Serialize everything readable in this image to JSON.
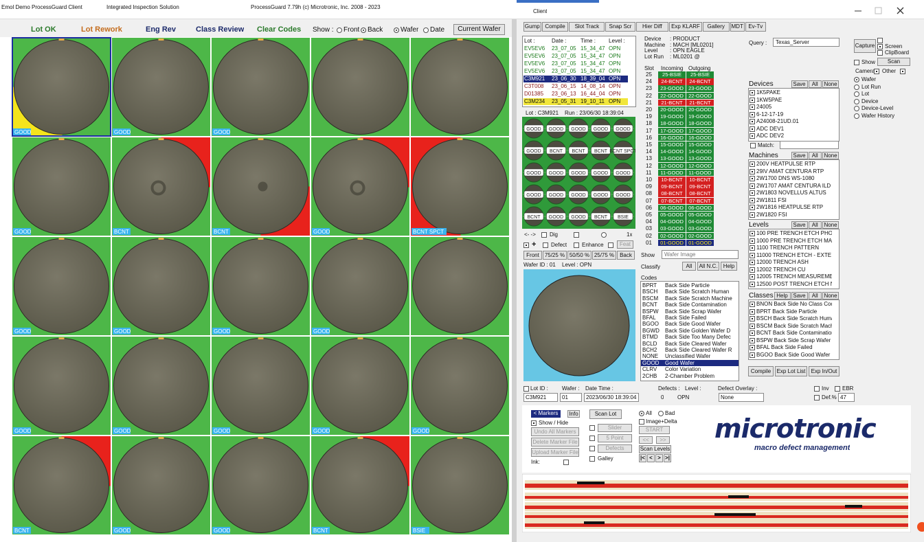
{
  "title_bar": {
    "app": "Emol Demo ProcessGuard Client",
    "subtitle": "Integrated Inspection Solution",
    "version": "ProcessGuard 7.79h (c) Microtronic, Inc. 2008 - 2023",
    "client": "Client"
  },
  "left": {
    "buttons": [
      "Lot OK",
      "Lot Rework",
      "Eng Rev",
      "Class Review",
      "Clear Codes"
    ],
    "show_label": "Show :",
    "side_options": [
      "Front",
      "Back"
    ],
    "sort_options": [
      "Wafer",
      "Date"
    ],
    "current_wafer": "Current Wafer",
    "wafers": [
      "GOOD",
      "GOOD",
      "GOOD",
      null,
      null,
      "GOOD",
      "BCNT",
      "BCNT",
      "GOOD",
      "BCNT SPCT",
      "GOOD",
      "GOOD",
      "GOOD",
      "GOOD",
      null,
      "GOOD",
      "GOOD",
      "GOOD",
      "GOOD",
      "GOOD",
      "BCNT",
      "GOOD",
      "GOOD",
      "BCNT",
      "BSIE"
    ]
  },
  "toolbar": [
    "Gump",
    "Compile",
    "Slot Track",
    "Snap Scr",
    "Hier Diff",
    "Exp KLARF",
    "Gallery",
    "MDT",
    "Ev-Tv"
  ],
  "lot_list": {
    "headers": [
      "Lot :",
      "Date :",
      "Time :",
      "Level :"
    ],
    "rows": [
      [
        "EV5EV6",
        "23_07_05",
        "15_34_47",
        "OPN"
      ],
      [
        "EV5EV6",
        "23_07_05",
        "15_34_47",
        "OPN"
      ],
      [
        "EV5EV6",
        "23_07_05",
        "15_34_47",
        "OPN"
      ],
      [
        "EV5EV6",
        "23_07_05",
        "15_34_47",
        "OPN"
      ],
      [
        "C3M921",
        "23_06_30",
        "18_39_04",
        "OPN"
      ],
      [
        "C3T008",
        "23_06_15",
        "14_08_14",
        "OPN"
      ],
      [
        "D01385",
        "23_06_13",
        "16_44_04",
        "OPN"
      ],
      [
        "C3M234",
        "23_05_31",
        "19_10_11",
        "OPN"
      ]
    ]
  },
  "lot_info": {
    "lot": "Lot : C3M921",
    "run": "Run : 23/06/30 18:39:04"
  },
  "mini_map": [
    "GOOD",
    "GOOD",
    "GOOD",
    "GOOD",
    "GOOD",
    "GOOD",
    "BCNT",
    "BCNT",
    "BCNT",
    "BCNT SPCT",
    "GOOD",
    "GOOD",
    "GOOD",
    "GOOD",
    "GOOD",
    "GOOD",
    "GOOD",
    "GOOD",
    "GOOD",
    "GOOD",
    "BCNT",
    "GOOD",
    "GOOD",
    "BCNT",
    "BSIE"
  ],
  "map_controls": {
    "nav": "<- ->",
    "dig": "Dig",
    "zoom": "1x",
    "plus": "+",
    "defect": "Defect",
    "enhance": "Enhance",
    "feat": "Feat"
  },
  "view_buttons": [
    "Front",
    "75/25 %",
    "50/50 %",
    "25/75 %",
    "Back"
  ],
  "wafer_id": "Wafer ID : 01",
  "wafer_level": "Level : OPN",
  "device_info": [
    [
      "Device",
      ": PRODUCT"
    ],
    [
      "Machine",
      ": MACH [ML0201]"
    ],
    [
      "Level",
      ": OPN EAGLE"
    ],
    [
      "Lot Run",
      ": ML0201 @"
    ]
  ],
  "slots": {
    "headers": [
      "Slot",
      "Incoming",
      "Outgoing"
    ],
    "rows": [
      [
        "25",
        "25-BSIE",
        "25-BSIE"
      ],
      [
        "24",
        "24-BCNT",
        "24-BCNT"
      ],
      [
        "23",
        "23-GOOD",
        "23-GOOD"
      ],
      [
        "22",
        "22-GOOD",
        "22-GOOD"
      ],
      [
        "21",
        "21-BCNT",
        "21-BCNT"
      ],
      [
        "20",
        "20-GOOD",
        "20-GOOD"
      ],
      [
        "19",
        "19-GOOD",
        "19-GOOD"
      ],
      [
        "18",
        "18-GOOD",
        "18-GOOD"
      ],
      [
        "17",
        "17-GOOD",
        "17-GOOD"
      ],
      [
        "16",
        "16-GOOD",
        "16-GOOD"
      ],
      [
        "15",
        "15-GOOD",
        "15-GOOD"
      ],
      [
        "14",
        "14-GOOD",
        "14-GOOD"
      ],
      [
        "13",
        "13-GOOD",
        "13-GOOD"
      ],
      [
        "12",
        "12-GOOD",
        "12-GOOD"
      ],
      [
        "11",
        "11-GOOD",
        "11-GOOD"
      ],
      [
        "10",
        "10-BCNT",
        "10-BCNT"
      ],
      [
        "09",
        "09-BCNT",
        "09-BCNT"
      ],
      [
        "08",
        "08-BCNT",
        "08-BCNT"
      ],
      [
        "07",
        "07-BCNT",
        "07-BCNT"
      ],
      [
        "06",
        "06-GOOD",
        "06-GOOD"
      ],
      [
        "05",
        "05-GOOD",
        "05-GOOD"
      ],
      [
        "04",
        "04-GOOD",
        "04-GOOD"
      ],
      [
        "03",
        "03-GOOD",
        "03-GOOD"
      ],
      [
        "02",
        "02-GOOD",
        "02-GOOD"
      ],
      [
        "01",
        "01-GOOD",
        "01-GOOD"
      ]
    ]
  },
  "show": {
    "label": "Show",
    "value": "Wafer Image"
  },
  "classify": [
    "Classify",
    "All",
    "All N.C.",
    "Help"
  ],
  "codes": {
    "label": "Codes",
    "rows": [
      [
        "BPRT",
        "Back Side Particle"
      ],
      [
        "BSCH",
        "Back Side Scratch Human"
      ],
      [
        "BSCM",
        "Back Side Scratch Machine"
      ],
      [
        "BCNT",
        "Back Side Contamination"
      ],
      [
        "BSPW",
        "Back Side Scrap Wafer"
      ],
      [
        "BFAL",
        "Back Side Failed"
      ],
      [
        "BGOO",
        "Back Side Good Wafer"
      ],
      [
        "BGWD",
        "Back Side Golden Wafer D"
      ],
      [
        "BTMD",
        "Back Side Too Many Defec"
      ],
      [
        "BCLD",
        "Back Side Cleared Wafer"
      ],
      [
        "BCH2",
        "Back Side Cleared Wafer R"
      ],
      [
        "NONE",
        "Unclassified Wafer"
      ],
      [
        "GOOD",
        "Good Wafer"
      ],
      [
        "CLRV",
        "Color Variation"
      ],
      [
        "2CHB",
        "2-Chamber Problem"
      ]
    ]
  },
  "query": {
    "label": "Query :",
    "value": "Texas_Server"
  },
  "filters": [
    {
      "label": "Devices",
      "buttons": [
        "Save",
        "All",
        "None"
      ],
      "items": [
        "1K5PAKE",
        "1KW5PAE",
        "24005",
        "6-12-17-19",
        "A24008-21UD.01",
        "ADC DEV1",
        "ADC DEV2"
      ]
    },
    {
      "label": "Machines",
      "buttons": [
        "Save",
        "All",
        "None"
      ],
      "items": [
        "200V HEATPULSE RTP",
        "29IV AMAT CENTURA RTP",
        "2W1700 DNS WS-1080",
        "2W1707 AMAT CENTURA ILD",
        "2W1803 NOVELLUS ALTUS",
        "2W1811 FSI",
        "2W1816 HEATPULSE RTP",
        "2W1820 FSI"
      ]
    },
    {
      "label": "Levels",
      "buttons": [
        "Save",
        "All",
        "None"
      ],
      "items": [
        "100 PRE TRENCH ETCH PHO",
        "1000 PRE TRENCH ETCH MA",
        "1100 TRENCH PATTERN",
        "11000 TRENCH ETCH - EXTE",
        "12000 TRENCH ASH",
        "12002 TRENCH CU",
        "12005 TRENCH MEASUREME",
        "12500 POST TRENCH ETCH N"
      ]
    },
    {
      "label": "Classes",
      "buttons": [
        "Help",
        "Save",
        "All",
        "None"
      ],
      "items": [
        "BNON Back Side No Class Cod",
        "BPRT Back Side Particle",
        "BSCH Back Side Scratch Huma",
        "BSCM Back Side Scratch Mach",
        "BCNT Back Side Contamination",
        "BSPW Back Side Scrap Wafer",
        "BFAL Back Side Failed",
        "BGOO Back Side Good Wafer"
      ]
    }
  ],
  "match": "Match:",
  "filter_buttons": [
    "Compile",
    "Exp Lot List",
    "Exp In/Out"
  ],
  "capture": {
    "button": "Capture",
    "screen": "Screen",
    "clipboard": "ClipBoard",
    "show": "Show",
    "scan": "Scan",
    "camera": "Camera",
    "other": "Other",
    "modes": [
      "Wafer",
      "Lot Run",
      "Lot",
      "Device",
      "Device-Level",
      "Wafer History"
    ]
  },
  "status": {
    "lot_id": "Lot ID :",
    "wafer": "Wafer :",
    "date_time": "Date Time :",
    "defects": "Defects :",
    "level": "Level :",
    "overlay": "Defect Overlay :",
    "inv": "Inv",
    "ebr": "EBR",
    "def_pct": "Def.%",
    "lot_id_value": "C3M921",
    "wafer_value": "01",
    "date_time_value": "2023/06/30 18:39:04",
    "defects_value": "0",
    "level_value": "OPN",
    "overlay_value": "None",
    "def_pct_value": "47"
  },
  "markers": {
    "markers": "< Markers",
    "info": "Info",
    "show_hide": "Show / Hide",
    "undo": "Undo All Markers",
    "delete": "Delete Marker File",
    "upload": "Upload Marker File",
    "ink": "Ink:"
  },
  "scan": {
    "scan_lot": "Scan Lot",
    "slider": "Slider",
    "five_point": "5 Point",
    "defects": "Defects",
    "galley": "Galley",
    "all": "All",
    "bad": "Bad",
    "image_delta": "Image+Delta",
    "start": "START",
    "prev": "<<",
    "next": ">>",
    "scan_levels": "Scan Levels",
    "nav": [
      "|<",
      "<",
      ">",
      ">|"
    ]
  },
  "logo": {
    "name": "microtronic",
    "tagline": "macro defect management"
  }
}
